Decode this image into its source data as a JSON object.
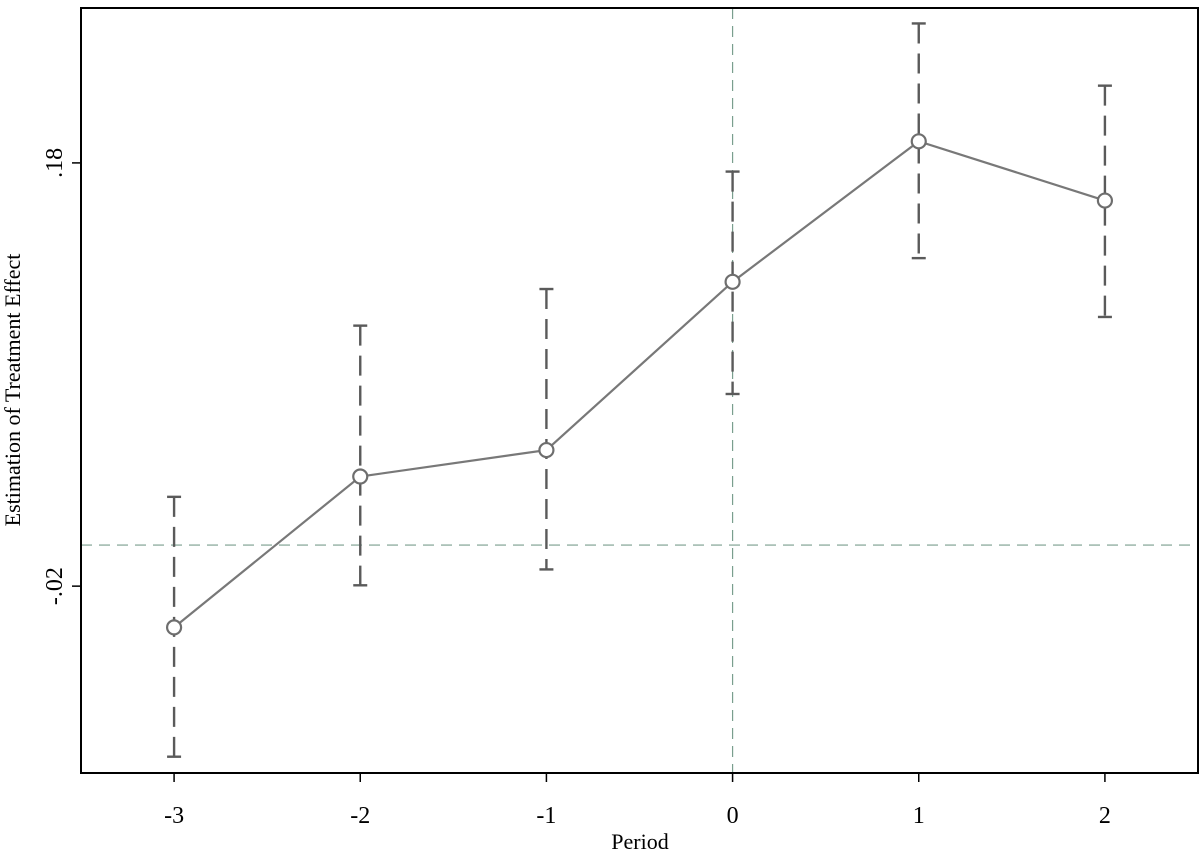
{
  "chart_data": {
    "type": "line",
    "title": "",
    "xlabel": "Period",
    "ylabel": "Estimation of Treatment Effect",
    "x_ticks": [
      "-3",
      "-2",
      "-1",
      "0",
      "1",
      "2"
    ],
    "y_ticks": [
      {
        "value": -0.02,
        "label": "-.02"
      },
      {
        "value": 0.18,
        "label": ".18"
      }
    ],
    "xlim": [
      -3.5,
      2.5
    ],
    "ylim": [
      -0.1083,
      0.2532
    ],
    "reference_lines": {
      "x": 0,
      "y": -0.0006
    },
    "grid": false,
    "legend": "none",
    "series": [
      {
        "x": [
          -3,
          -2,
          -1,
          0,
          1,
          2
        ],
        "estimate": [
          -0.0395,
          0.0318,
          0.0443,
          0.1238,
          0.1902,
          0.1622
        ],
        "ci_lower": [
          -0.1006,
          -0.0196,
          -0.0121,
          0.0708,
          0.135,
          0.1072
        ],
        "ci_upper": [
          0.0222,
          0.1031,
          0.1204,
          0.1759,
          0.2459,
          0.2165
        ]
      }
    ],
    "colors": {
      "line": "#787878",
      "marker": "#6e6e6e",
      "ci": "#5a5a5a",
      "reference": "#7a9e8e",
      "axis": "#000000"
    }
  }
}
